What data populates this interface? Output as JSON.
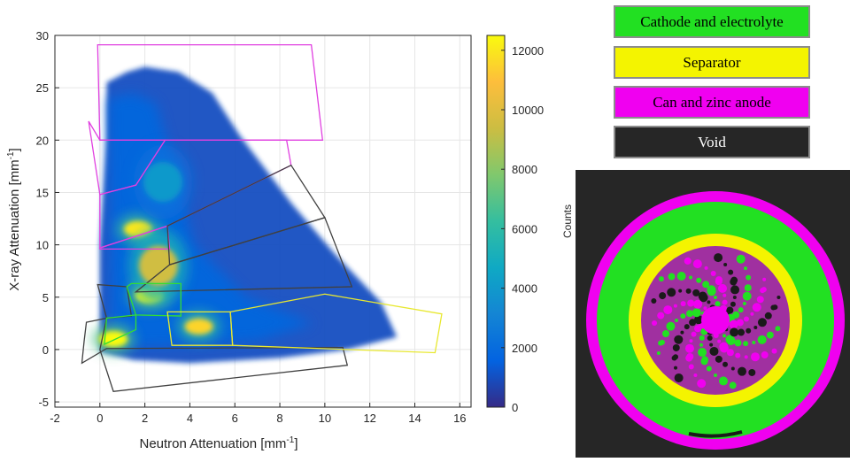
{
  "chart_data": {
    "type": "heatmap",
    "xlabel": "Neutron Attenuation [mm",
    "xlabel_sup": "-1",
    "xlabel_end": "]",
    "ylabel": "X-ray Attenuation [mm",
    "ylabel_sup": "-1",
    "ylabel_end": "]",
    "xlim": [
      -2,
      16.5
    ],
    "ylim": [
      -5.5,
      30
    ],
    "x_ticks": [
      -2,
      0,
      2,
      4,
      6,
      8,
      10,
      12,
      14,
      16
    ],
    "y_ticks": [
      -5,
      0,
      5,
      10,
      15,
      20,
      25,
      30
    ],
    "grid": true,
    "colorbar": {
      "label": "Counts",
      "range": [
        0,
        12500
      ],
      "ticks": [
        0,
        2000,
        4000,
        6000,
        8000,
        10000,
        12000
      ],
      "colormap": "parula"
    },
    "dense_regions": [
      {
        "x": 1.7,
        "y": 11.5,
        "counts": 12000
      },
      {
        "x": 2.2,
        "y": 5.2,
        "counts": 12500
      },
      {
        "x": 4.4,
        "y": 2.2,
        "counts": 11500
      },
      {
        "x": 0.6,
        "y": 1.0,
        "counts": 12500
      },
      {
        "x": 2.6,
        "y": 8.0,
        "counts": 9500
      },
      {
        "x": 2.8,
        "y": 16.0,
        "counts": 4000
      }
    ],
    "regions": [
      {
        "class": "Can and zinc anode",
        "color": "#e040e0",
        "polygons": [
          [
            [
              -0.1,
              29.1
            ],
            [
              9.4,
              29.1
            ],
            [
              9.9,
              20.0
            ],
            [
              0.0,
              20.0
            ]
          ],
          [
            [
              -0.5,
              21.8
            ],
            [
              0.0,
              20.0
            ],
            [
              2.9,
              20.0
            ],
            [
              1.6,
              15.7
            ],
            [
              0.0,
              14.8
            ]
          ],
          [
            [
              0.0,
              14.8
            ],
            [
              1.6,
              15.7
            ],
            [
              2.9,
              20.0
            ],
            [
              8.3,
              20.0
            ],
            [
              8.5,
              17.6
            ],
            [
              3.0,
              11.8
            ],
            [
              0.0,
              9.7
            ]
          ],
          [
            [
              0.0,
              9.7
            ],
            [
              3.0,
              11.8
            ],
            [
              3.1,
              9.6
            ],
            [
              0.0,
              9.6
            ]
          ]
        ]
      },
      {
        "class": "Void",
        "color": "#404040",
        "polygons": [
          [
            [
              8.5,
              17.6
            ],
            [
              10.0,
              12.6
            ],
            [
              3.1,
              8.1
            ],
            [
              3.0,
              11.8
            ]
          ],
          [
            [
              10.0,
              12.6
            ],
            [
              11.2,
              6.0
            ],
            [
              1.6,
              5.5
            ],
            [
              3.1,
              8.1
            ]
          ],
          [
            [
              -0.1,
              6.2
            ],
            [
              1.2,
              6.0
            ],
            [
              1.4,
              3.2
            ],
            [
              0.3,
              3.0
            ]
          ],
          [
            [
              -0.6,
              2.6
            ],
            [
              0.3,
              3.0
            ],
            [
              0.0,
              0.0
            ],
            [
              0.6,
              -4.0
            ],
            [
              11.0,
              -1.5
            ],
            [
              10.8,
              0.2
            ],
            [
              0.3,
              0.1
            ],
            [
              -0.8,
              -1.3
            ],
            [
              -0.7,
              0.8
            ]
          ]
        ]
      },
      {
        "class": "Cathode and electrolyte",
        "color": "#33dd33",
        "polygons": [
          [
            [
              1.4,
              6.3
            ],
            [
              3.6,
              6.3
            ],
            [
              3.6,
              3.2
            ],
            [
              1.6,
              3.3
            ],
            [
              1.2,
              6.0
            ]
          ],
          [
            [
              0.3,
              3.0
            ],
            [
              1.6,
              3.3
            ],
            [
              1.6,
              1.9
            ],
            [
              0.2,
              0.5
            ]
          ]
        ]
      },
      {
        "class": "Separator",
        "color": "#e8e830",
        "polygons": [
          [
            [
              3.0,
              3.6
            ],
            [
              5.8,
              3.6
            ],
            [
              5.9,
              0.4
            ],
            [
              3.2,
              0.4
            ]
          ],
          [
            [
              5.8,
              3.6
            ],
            [
              10.0,
              5.3
            ],
            [
              15.2,
              3.4
            ],
            [
              14.9,
              -0.3
            ],
            [
              5.9,
              0.4
            ]
          ]
        ]
      }
    ]
  },
  "legend": {
    "items": [
      {
        "label": "Cathode and electrolyte",
        "color": "#22e022"
      },
      {
        "label": "Separator",
        "color": "#f4f400"
      },
      {
        "label": "Can and zinc anode",
        "color": "#f000f0"
      },
      {
        "label": "Void",
        "color": "#262626",
        "text_color": "#ffffff"
      }
    ]
  },
  "cross_section": {
    "ring_colors": [
      "#f000f0",
      "#22e022",
      "#f4f400",
      "#a030a0",
      "#1a1a1a"
    ]
  }
}
